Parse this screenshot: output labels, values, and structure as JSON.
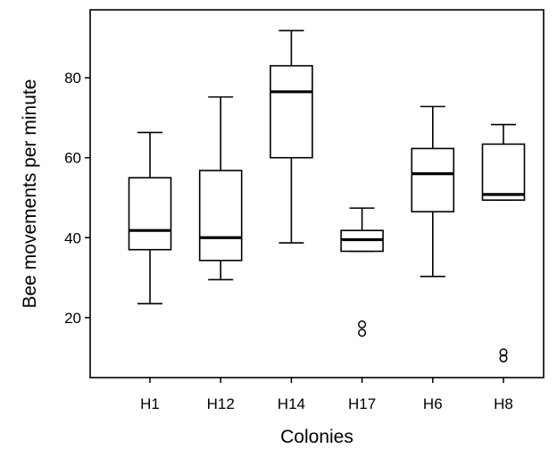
{
  "chart_data": {
    "type": "boxplot",
    "title": "",
    "xlabel": "Colonies",
    "ylabel": "Bee movements per minute",
    "ylim": [
      5,
      97
    ],
    "yticks": [
      20,
      40,
      60,
      80
    ],
    "grid": false,
    "legend": "none",
    "categories": [
      "H1",
      "H12",
      "H14",
      "H17",
      "H6",
      "H8"
    ],
    "boxes": [
      {
        "name": "H1",
        "whisker_low": 23.5,
        "q1": 37.0,
        "median": 41.8,
        "q3": 55.0,
        "whisker_high": 66.3,
        "outliers": []
      },
      {
        "name": "H12",
        "whisker_low": 29.5,
        "q1": 34.3,
        "median": 40.0,
        "q3": 56.8,
        "whisker_high": 75.2,
        "outliers": []
      },
      {
        "name": "H14",
        "whisker_low": 38.7,
        "q1": 60.0,
        "median": 76.5,
        "q3": 83.0,
        "whisker_high": 91.8,
        "outliers": []
      },
      {
        "name": "H17",
        "whisker_low": 36.6,
        "q1": 36.6,
        "median": 39.5,
        "q3": 41.8,
        "whisker_high": 47.4,
        "outliers": [
          16.2,
          18.3
        ]
      },
      {
        "name": "H6",
        "whisker_low": 30.3,
        "q1": 46.5,
        "median": 56.0,
        "q3": 62.3,
        "whisker_high": 72.8,
        "outliers": []
      },
      {
        "name": "H8",
        "whisker_low": 49.4,
        "q1": 49.4,
        "median": 50.8,
        "q3": 63.4,
        "whisker_high": 68.3,
        "outliers": [
          9.8,
          11.3
        ]
      }
    ]
  }
}
